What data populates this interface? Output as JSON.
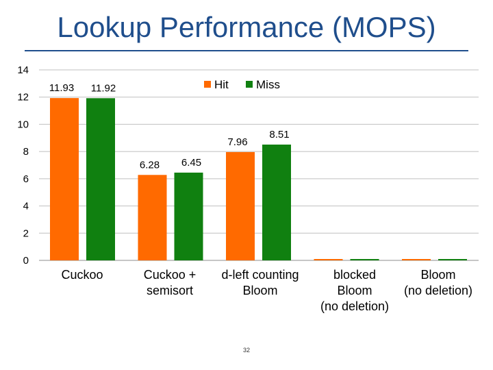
{
  "slide": {
    "title": "Lookup Performance (MOPS)",
    "page_number": "32"
  },
  "colors": {
    "hit": "#ff6a00",
    "miss": "#108010",
    "title": "#1f4e8c",
    "grid": "#bfbfbf",
    "text": "#000000"
  },
  "chart_data": {
    "type": "bar",
    "title": "Lookup Performance (MOPS)",
    "xlabel": "",
    "ylabel": "",
    "ylim": [
      0,
      14
    ],
    "yticks": [
      0,
      2,
      4,
      6,
      8,
      10,
      12,
      14
    ],
    "grid": true,
    "legend_position": "top-center",
    "categories": [
      "Cuckoo",
      "Cuckoo + semisort",
      "d-left counting Bloom",
      "blocked Bloom (no deletion)",
      "Bloom (no deletion)"
    ],
    "category_label_lines": [
      [
        "Cuckoo"
      ],
      [
        "Cuckoo +",
        "semisort"
      ],
      [
        "d-left counting",
        "Bloom"
      ],
      [
        "blocked",
        "Bloom",
        "(no deletion)"
      ],
      [
        "Bloom",
        "(no deletion)"
      ]
    ],
    "series": [
      {
        "name": "Hit",
        "values": [
          11.93,
          6.28,
          7.96,
          0.1,
          0.1
        ],
        "data_labels": [
          "11.93",
          "6.28",
          "7.96",
          "",
          ""
        ]
      },
      {
        "name": "Miss",
        "values": [
          11.92,
          6.45,
          8.51,
          0.1,
          0.1
        ],
        "data_labels": [
          "11.92",
          "6.45",
          "8.51",
          "",
          ""
        ]
      }
    ]
  }
}
